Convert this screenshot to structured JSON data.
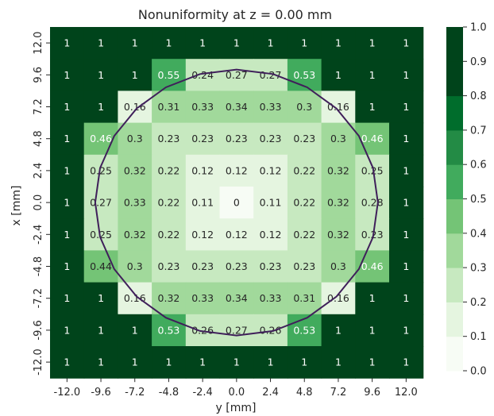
{
  "chart_data": {
    "type": "heatmap",
    "title": "Nonuniformity at z = 0.00 mm",
    "xlabel": "y [mm]",
    "ylabel": "x [mm]",
    "x_ticks": [
      "-12.0",
      "-9.6",
      "-7.2",
      "-4.8",
      "-2.4",
      "0.0",
      "2.4",
      "4.8",
      "7.2",
      "9.6",
      "12.0"
    ],
    "y_ticks": [
      "12.0",
      "9.6",
      "7.2",
      "4.8",
      "2.4",
      "0.0",
      "-2.4",
      "-4.8",
      "-7.2",
      "-9.6",
      "-12.0"
    ],
    "values": [
      [
        1,
        1,
        1,
        1,
        1,
        1,
        1,
        1,
        1,
        1,
        1
      ],
      [
        1,
        1,
        1,
        0.55,
        0.24,
        0.27,
        0.27,
        0.53,
        1,
        1,
        1
      ],
      [
        1,
        1,
        0.16,
        0.31,
        0.33,
        0.34,
        0.33,
        0.3,
        0.16,
        1,
        1
      ],
      [
        1,
        0.46,
        0.3,
        0.23,
        0.23,
        0.23,
        0.23,
        0.23,
        0.3,
        0.46,
        1
      ],
      [
        1,
        0.25,
        0.32,
        0.22,
        0.12,
        0.12,
        0.12,
        0.22,
        0.32,
        0.25,
        1
      ],
      [
        1,
        0.27,
        0.33,
        0.22,
        0.11,
        0,
        0.11,
        0.22,
        0.32,
        0.28,
        1
      ],
      [
        1,
        0.25,
        0.32,
        0.22,
        0.12,
        0.12,
        0.12,
        0.22,
        0.32,
        0.23,
        1
      ],
      [
        1,
        0.44,
        0.3,
        0.23,
        0.23,
        0.23,
        0.23,
        0.23,
        0.3,
        0.46,
        1
      ],
      [
        1,
        1,
        0.16,
        0.32,
        0.33,
        0.34,
        0.33,
        0.31,
        0.16,
        1,
        1
      ],
      [
        1,
        1,
        1,
        0.53,
        0.26,
        0.27,
        0.26,
        0.53,
        1,
        1,
        1
      ],
      [
        1,
        1,
        1,
        1,
        1,
        1,
        1,
        1,
        1,
        1,
        1
      ]
    ],
    "colorbar": {
      "range": [
        0.0,
        1.0
      ],
      "levels": 10,
      "ticks": [
        "0.0",
        "0.1",
        "0.2",
        "0.3",
        "0.4",
        "0.5",
        "0.6",
        "0.7",
        "0.8",
        "0.9",
        "1.0"
      ],
      "colormap": "Greens (discrete)",
      "colors": [
        "#f7fcf5",
        "#e5f5e0",
        "#c7e9c0",
        "#a1d99b",
        "#74c476",
        "#41ab5d",
        "#238b45",
        "#006d2c",
        "#00441b",
        "#00441b"
      ]
    },
    "contour": {
      "shape": "circle",
      "color": "#3f1f5a",
      "radius_mm": 10.0,
      "center_mm": [
        0,
        0
      ]
    },
    "grid": false,
    "legend": "colorbar-right"
  }
}
